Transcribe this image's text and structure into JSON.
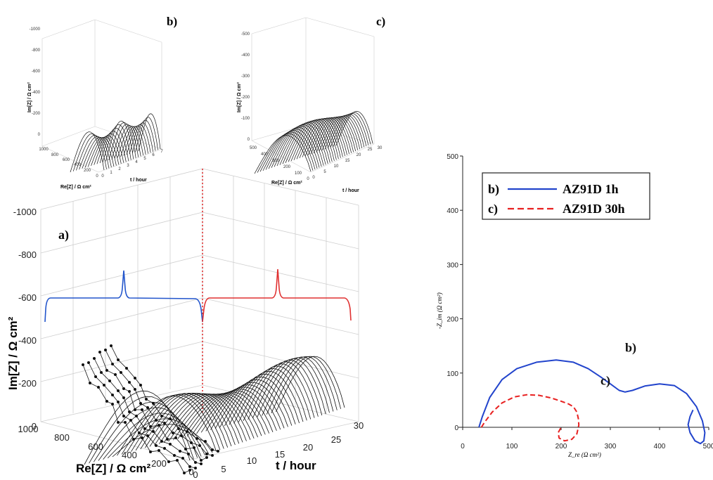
{
  "chart_data": [
    {
      "id": "panel-a",
      "type": "line",
      "panel_label": "a)",
      "zlabel": "Im[Z] /  Ω cm²",
      "xlabel": "Re[Z] / Ω cm²",
      "ylabel": "t / hour",
      "z_ticks": [
        "-1000",
        "-800",
        "-600",
        "-400",
        "-200",
        "0"
      ],
      "x_ticks": [
        "1000",
        "800",
        "600",
        "400",
        "200",
        "0"
      ],
      "y_ticks": [
        "0",
        "5",
        "10",
        "15",
        "20",
        "25",
        "30"
      ],
      "zlim": [
        -1000,
        0
      ],
      "xlim": [
        0,
        1000
      ],
      "ylim": [
        0,
        30
      ],
      "grid": true,
      "projection_colors": [
        "#2255cc",
        "#e03030"
      ]
    },
    {
      "id": "panel-b",
      "type": "line",
      "panel_label": "b)",
      "zlabel": "Im[Z] / Ω cm²",
      "xlabel": "Re[Z] / Ω cm²",
      "ylabel": "t / hour",
      "z_ticks": [
        "-1000",
        "-800",
        "-600",
        "-400",
        "-200",
        "0"
      ],
      "x_ticks": [
        "1000",
        "800",
        "600",
        "400",
        "200",
        "0"
      ],
      "y_ticks": [
        "0",
        "1",
        "2",
        "3",
        "4",
        "5",
        "6",
        "7"
      ],
      "ylim": [
        0,
        7
      ]
    },
    {
      "id": "panel-c",
      "type": "line",
      "panel_label": "c)",
      "zlabel": "Im[Z] / Ω cm²",
      "xlabel": "Re[Z] / Ω cm²",
      "ylabel": "t / hour",
      "z_ticks": [
        "-500",
        "-400",
        "-300",
        "-200",
        "-100",
        "0"
      ],
      "x_ticks": [
        "500",
        "400",
        "300",
        "200",
        "100",
        "0"
      ],
      "y_ticks": [
        "0",
        "5",
        "10",
        "15",
        "20",
        "25",
        "30"
      ],
      "ylim": [
        0,
        30
      ]
    },
    {
      "id": "nyquist",
      "type": "line",
      "xlabel": "Z_re (Ω cm²)",
      "ylabel": "-Z_im (Ω cm²)",
      "xlim": [
        0,
        500
      ],
      "ylim": [
        0,
        500
      ],
      "x_ticks": [
        "0",
        "100",
        "200",
        "300",
        "400",
        "500"
      ],
      "y_ticks": [
        "0",
        "100",
        "200",
        "300",
        "400",
        "500"
      ],
      "legend_position": "top-left",
      "series": [
        {
          "name": "AZ91D 1h",
          "legend_tag": "b)",
          "curve_label": "b)",
          "color": "#2244cc",
          "dash": "solid",
          "x": [
            33,
            40,
            55,
            80,
            110,
            150,
            190,
            225,
            255,
            280,
            300,
            318,
            330,
            345,
            370,
            400,
            430,
            455,
            475,
            487,
            492,
            490,
            483,
            472,
            462,
            458,
            462,
            468
          ],
          "y": [
            0,
            20,
            55,
            88,
            108,
            120,
            124,
            120,
            108,
            93,
            80,
            68,
            65,
            68,
            76,
            80,
            77,
            62,
            38,
            12,
            -10,
            -25,
            -30,
            -25,
            -10,
            5,
            20,
            32
          ]
        },
        {
          "name": "AZ91D 30h",
          "legend_tag": "c)",
          "curve_label": "c)",
          "color": "#e82020",
          "dash": "dashed",
          "x": [
            38,
            45,
            60,
            80,
            105,
            130,
            155,
            180,
            200,
            215,
            225,
            232,
            235,
            236,
            232,
            222,
            207,
            196,
            194,
            200
          ],
          "y": [
            0,
            10,
            28,
            45,
            56,
            60,
            59,
            54,
            48,
            43,
            38,
            28,
            16,
            4,
            -12,
            -22,
            -25,
            -20,
            -10,
            0
          ]
        }
      ]
    }
  ]
}
